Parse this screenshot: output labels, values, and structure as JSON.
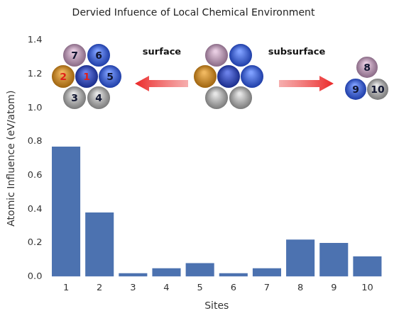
{
  "chart_data": {
    "type": "bar",
    "title": "Dervied Infuence of Local Chemical Environment",
    "x_label": "Sites",
    "y_label": "Atomic Influence (eV/atom)",
    "categories": [
      "1",
      "2",
      "3",
      "4",
      "5",
      "6",
      "7",
      "8",
      "9",
      "10"
    ],
    "values": [
      0.77,
      0.38,
      0.02,
      0.05,
      0.08,
      0.02,
      0.05,
      0.22,
      0.2,
      0.12
    ],
    "color": "#4c72b0",
    "ylim": [
      0,
      1.4
    ],
    "yticks": [
      {
        "value": 0,
        "label": "0.0"
      },
      0.2,
      0.4,
      0.6,
      0.8,
      {
        "value": 1,
        "label": "1.0"
      },
      1.2,
      1.4
    ],
    "grid": false,
    "annotations": [
      "surface",
      "subsurface"
    ]
  }
}
